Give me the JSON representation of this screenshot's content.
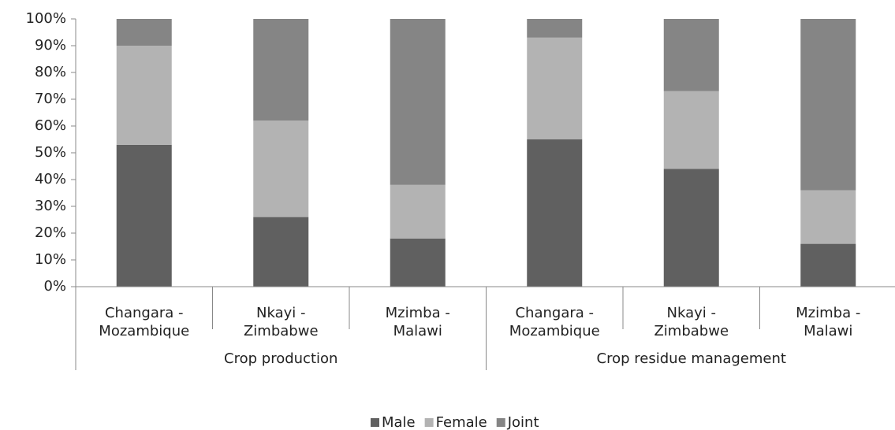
{
  "chart_data": {
    "type": "bar",
    "stacked": true,
    "categories": [
      "Changara - Mozambique",
      "Nkayi - Zimbabwe",
      "Mzimba - Malawi",
      "Changara - Mozambique",
      "Nkayi - Zimbabwe",
      "Mzimba - Malawi"
    ],
    "groups": [
      "Crop production",
      "Crop residue management"
    ],
    "series": [
      {
        "name": "Male",
        "color": "#606060",
        "values": [
          53,
          26,
          18,
          55,
          44,
          16
        ]
      },
      {
        "name": "Female",
        "color": "#b3b3b3",
        "values": [
          37,
          36,
          20,
          38,
          29,
          20
        ]
      },
      {
        "name": "Joint",
        "color": "#858585",
        "values": [
          10,
          38,
          62,
          7,
          27,
          64
        ]
      }
    ],
    "ylim": [
      0,
      100
    ],
    "yticks": [
      {
        "value": 0,
        "label": "0%"
      },
      {
        "value": 10,
        "label": "10%"
      },
      {
        "value": 20,
        "label": "20%"
      },
      {
        "value": 30,
        "label": "30%"
      },
      {
        "value": 40,
        "label": "40%"
      },
      {
        "value": 50,
        "label": "50%"
      },
      {
        "value": 60,
        "label": "60%"
      },
      {
        "value": 70,
        "label": "70%"
      },
      {
        "value": 80,
        "label": "80%"
      },
      {
        "value": 90,
        "label": "90%"
      },
      {
        "value": 100,
        "label": "100%"
      }
    ],
    "legend": "bottom"
  }
}
